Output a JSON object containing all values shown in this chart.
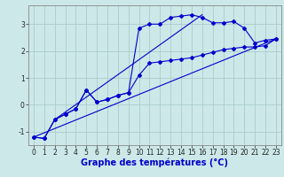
{
  "background_color": "#cde8e8",
  "grid_color": "#aacccc",
  "line_color": "#0000cc",
  "xlabel": "Graphe des températures (°C)",
  "xlabel_fontsize": 7,
  "ylim": [
    -1.5,
    3.7
  ],
  "xlim": [
    -0.5,
    23.5
  ],
  "yticks": [
    -1,
    0,
    1,
    2,
    3
  ],
  "xticks": [
    0,
    1,
    2,
    3,
    4,
    5,
    6,
    7,
    8,
    9,
    10,
    11,
    12,
    13,
    14,
    15,
    16,
    17,
    18,
    19,
    20,
    21,
    22,
    23
  ],
  "tick_fontsize": 5.5,
  "curve1_x": [
    0,
    1,
    2,
    3,
    4,
    5,
    6,
    7,
    8,
    9,
    10,
    11,
    12,
    13,
    14,
    15,
    16,
    17,
    18,
    19,
    20,
    21,
    22,
    23
  ],
  "curve1_y": [
    -1.2,
    -1.25,
    -0.55,
    -0.35,
    -0.15,
    0.55,
    0.1,
    0.2,
    0.35,
    0.45,
    2.85,
    3.0,
    3.0,
    3.25,
    3.3,
    3.35,
    3.25,
    3.05,
    3.05,
    3.1,
    2.85,
    2.3,
    2.4,
    2.45
  ],
  "curve2_x": [
    0,
    1,
    2,
    3,
    4,
    5,
    6,
    7,
    8,
    9,
    10,
    11,
    12,
    13,
    14,
    15,
    16,
    17,
    18,
    19,
    20,
    21,
    22,
    23
  ],
  "curve2_y": [
    -1.2,
    -1.25,
    -0.55,
    -0.35,
    -0.15,
    0.55,
    0.1,
    0.2,
    0.35,
    0.45,
    1.1,
    1.55,
    1.6,
    1.65,
    1.7,
    1.75,
    1.85,
    1.95,
    2.05,
    2.1,
    2.15,
    2.15,
    2.2,
    2.45
  ],
  "line1_x": [
    0,
    23
  ],
  "line1_y": [
    -1.2,
    2.45
  ],
  "line2_x": [
    2,
    16
  ],
  "line2_y": [
    -0.55,
    3.35
  ]
}
